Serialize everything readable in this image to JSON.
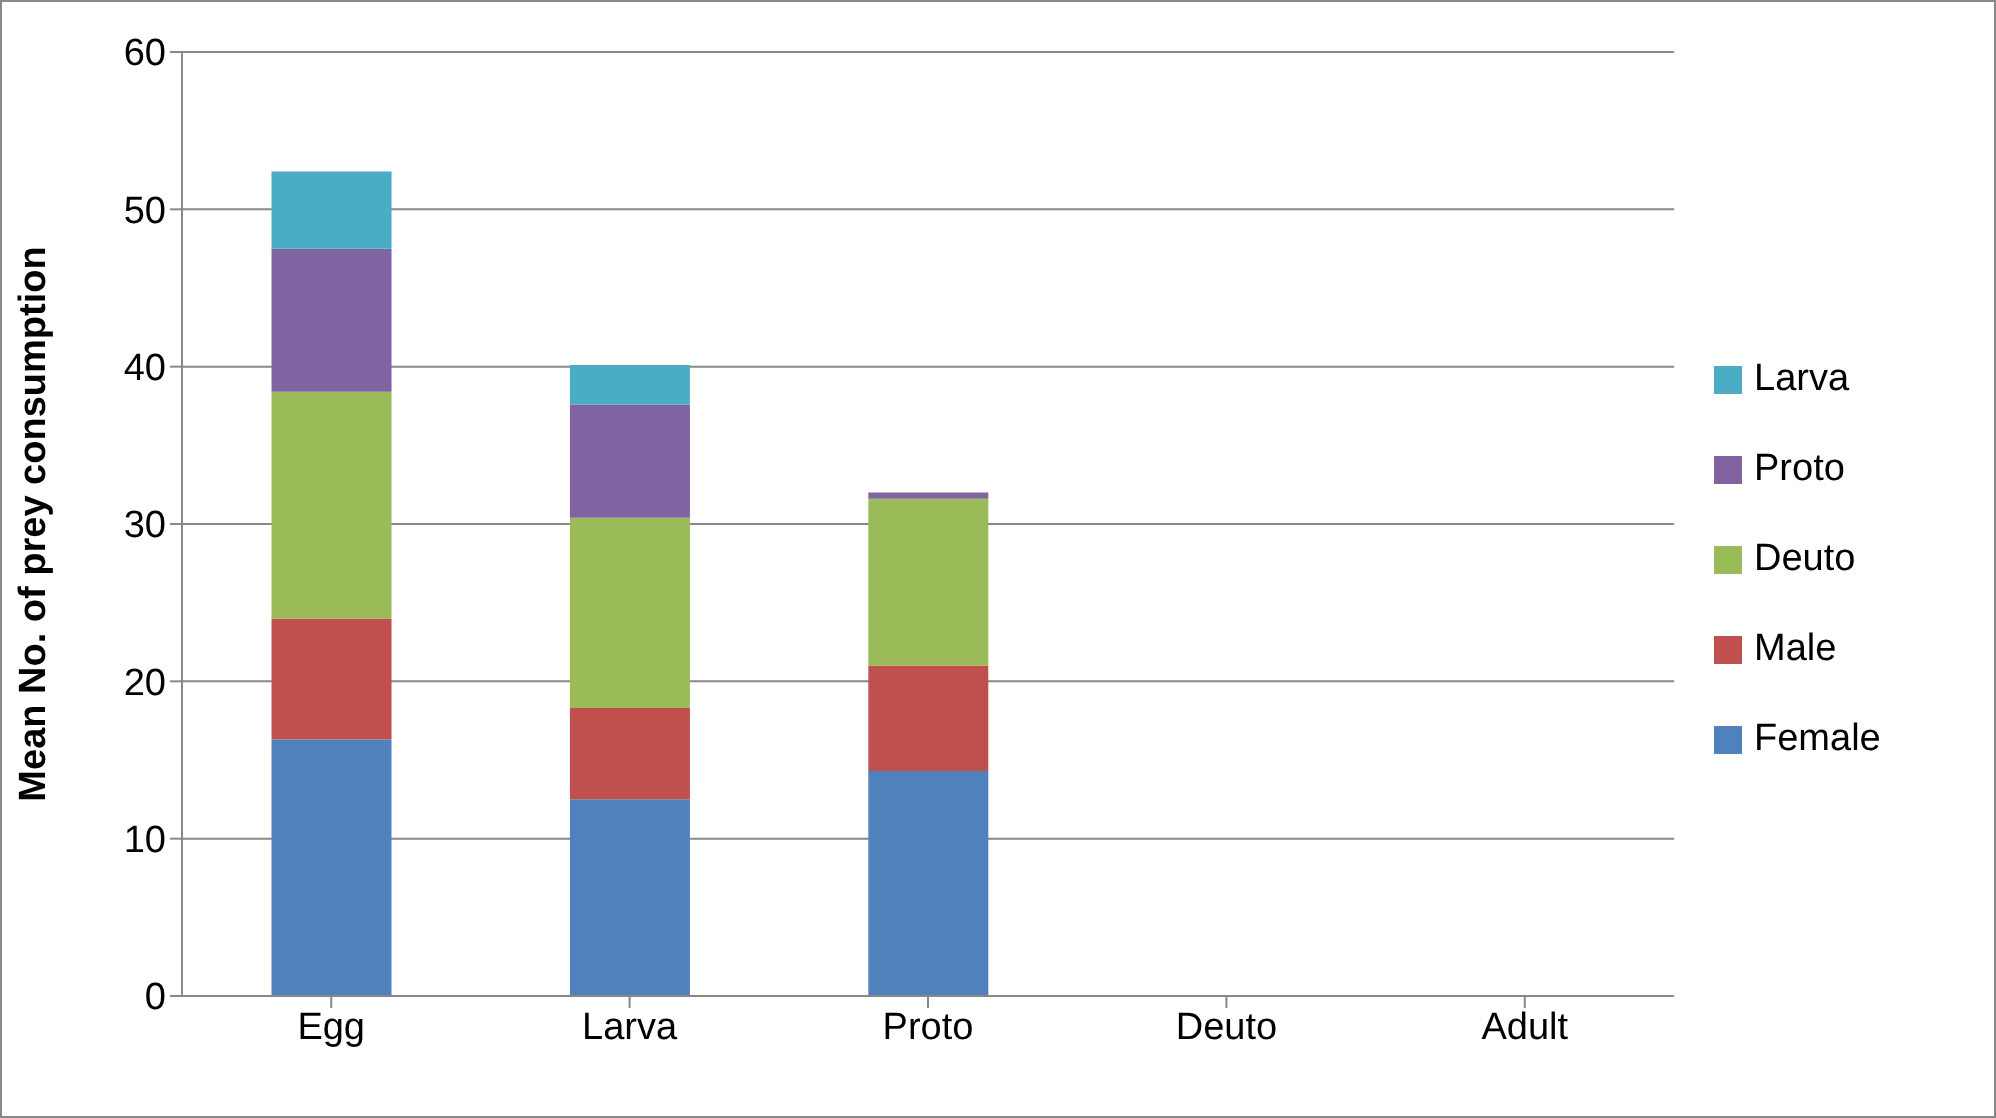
{
  "chart_data": {
    "type": "bar",
    "stacked": true,
    "ylabel": "Mean No. of prey consumption",
    "categories": [
      "Egg",
      "Larva",
      "Proto",
      "Deuto",
      "Adult"
    ],
    "series": [
      {
        "name": "Female",
        "color": "#4f81bd",
        "values": [
          16.3,
          12.5,
          14.3,
          0,
          0
        ]
      },
      {
        "name": "Male",
        "color": "#c0504d",
        "values": [
          7.7,
          5.8,
          6.7,
          0,
          0
        ]
      },
      {
        "name": "Deuto",
        "color": "#9bbb59",
        "values": [
          14.4,
          12.1,
          10.6,
          0,
          0
        ]
      },
      {
        "name": "Proto",
        "color": "#8064a2",
        "values": [
          9.1,
          7.2,
          0.4,
          0,
          0
        ]
      },
      {
        "name": "Larva",
        "color": "#4bacc6",
        "values": [
          4.9,
          2.5,
          0,
          0,
          0
        ]
      }
    ],
    "ylim": [
      0,
      60
    ],
    "yticks": [
      0,
      10,
      20,
      30,
      40,
      50,
      60
    ],
    "grid": "y",
    "legend": "right"
  }
}
